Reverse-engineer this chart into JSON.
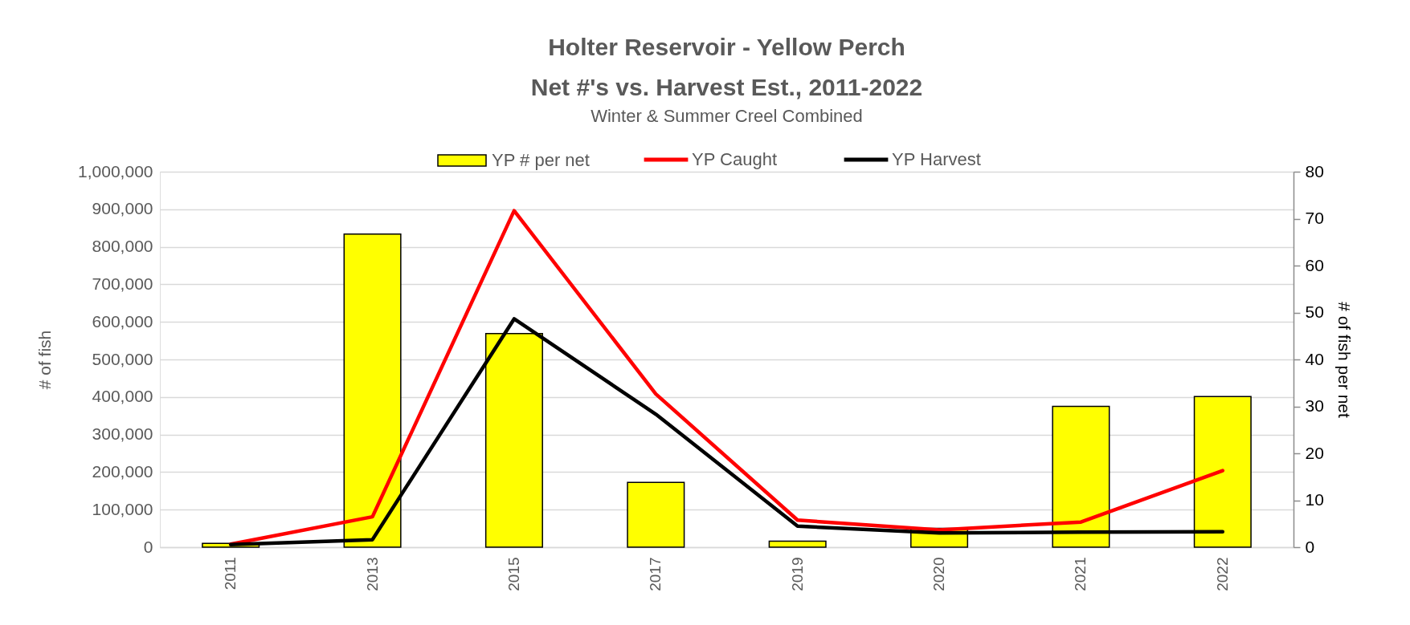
{
  "chart_data": {
    "type": "bar",
    "title": "Holter Reservoir - Yellow Perch\nNet #'s vs. Harvest Est., 2011-2022",
    "subtitle": "Winter & Summer Creel Combined",
    "ylabel": "# of fish",
    "y2label": "# of fish per net",
    "categories": [
      "2011",
      "2013",
      "2015",
      "2017",
      "2019",
      "2020",
      "2021",
      "2022"
    ],
    "series": [
      {
        "name": "YP # per net",
        "axis": "y2",
        "color": "#ffff00",
        "values": [
          0.8,
          66.7,
          45.5,
          13.8,
          1.3,
          4,
          30,
          32.1
        ]
      },
      {
        "name": "YP Caught",
        "type": "line",
        "color": "#ff0000",
        "values": [
          8000,
          81000,
          896000,
          408000,
          72000,
          46000,
          67000,
          204000
        ]
      },
      {
        "name": "YP Harvest",
        "type": "line",
        "color": "#000000",
        "values": [
          7000,
          20000,
          608000,
          354000,
          56000,
          38000,
          40000,
          41000
        ]
      }
    ],
    "ylim": [
      0,
      1000000
    ],
    "yticks": [
      0,
      {
        "value": 100000,
        "label": "100,000"
      },
      {
        "value": 200000,
        "label": "200,000"
      },
      {
        "value": 300000,
        "label": "300,000"
      },
      {
        "value": 400000,
        "label": "400,000"
      },
      {
        "value": 500000,
        "label": "500,000"
      },
      {
        "value": 600000,
        "label": "600,000"
      },
      {
        "value": 700000,
        "label": "700,000"
      },
      {
        "value": 800000,
        "label": "800,000"
      },
      {
        "value": 900000,
        "label": "900,000"
      },
      {
        "value": 1000000,
        "label": "1,000,000"
      }
    ],
    "y2lim": [
      0,
      80
    ],
    "y2ticks": [
      0,
      10,
      20,
      30,
      40,
      50,
      60,
      70,
      80
    ],
    "grid": "y",
    "legend": "top"
  }
}
